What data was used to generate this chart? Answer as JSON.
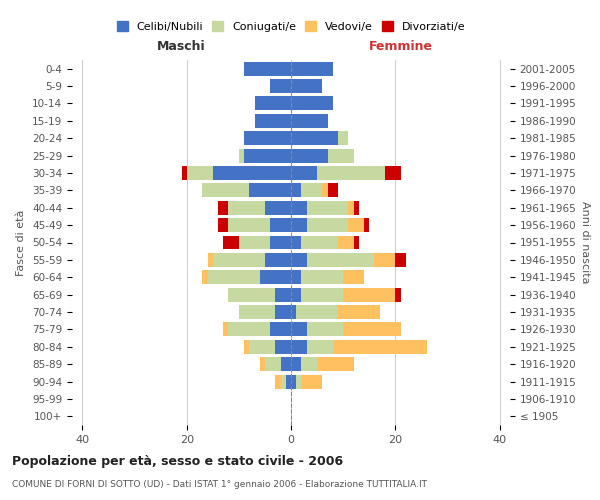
{
  "age_groups": [
    "100+",
    "95-99",
    "90-94",
    "85-89",
    "80-84",
    "75-79",
    "70-74",
    "65-69",
    "60-64",
    "55-59",
    "50-54",
    "45-49",
    "40-44",
    "35-39",
    "30-34",
    "25-29",
    "20-24",
    "15-19",
    "10-14",
    "5-9",
    "0-4"
  ],
  "birth_years": [
    "≤ 1905",
    "1906-1910",
    "1911-1915",
    "1916-1920",
    "1921-1925",
    "1926-1930",
    "1931-1935",
    "1936-1940",
    "1941-1945",
    "1946-1950",
    "1951-1955",
    "1956-1960",
    "1961-1965",
    "1966-1970",
    "1971-1975",
    "1976-1980",
    "1981-1985",
    "1986-1990",
    "1991-1995",
    "1996-2000",
    "2001-2005"
  ],
  "male": {
    "celibi": [
      0,
      0,
      1,
      2,
      3,
      4,
      3,
      3,
      6,
      5,
      4,
      4,
      5,
      8,
      15,
      9,
      9,
      7,
      7,
      4,
      9
    ],
    "coniugati": [
      0,
      0,
      1,
      3,
      5,
      8,
      7,
      9,
      10,
      10,
      6,
      8,
      7,
      9,
      5,
      1,
      0,
      0,
      0,
      0,
      0
    ],
    "vedovi": [
      0,
      0,
      1,
      1,
      1,
      1,
      0,
      0,
      1,
      1,
      0,
      0,
      0,
      0,
      0,
      0,
      0,
      0,
      0,
      0,
      0
    ],
    "divorziati": [
      0,
      0,
      0,
      0,
      0,
      0,
      0,
      0,
      0,
      0,
      3,
      2,
      2,
      0,
      1,
      0,
      0,
      0,
      0,
      0,
      0
    ]
  },
  "female": {
    "nubili": [
      0,
      0,
      1,
      2,
      3,
      3,
      1,
      2,
      2,
      3,
      2,
      3,
      3,
      2,
      5,
      7,
      9,
      7,
      8,
      6,
      8
    ],
    "coniugate": [
      0,
      0,
      1,
      3,
      5,
      7,
      8,
      8,
      8,
      13,
      7,
      8,
      8,
      4,
      13,
      5,
      2,
      0,
      0,
      0,
      0
    ],
    "vedove": [
      0,
      0,
      4,
      7,
      18,
      11,
      8,
      10,
      4,
      4,
      3,
      3,
      1,
      1,
      0,
      0,
      0,
      0,
      0,
      0,
      0
    ],
    "divorziate": [
      0,
      0,
      0,
      0,
      0,
      0,
      0,
      1,
      0,
      2,
      1,
      1,
      1,
      2,
      3,
      0,
      0,
      0,
      0,
      0,
      0
    ]
  },
  "colors": {
    "celibi": "#4472c4",
    "coniugati": "#c5d9a0",
    "vedovi": "#ffc060",
    "divorziati": "#cc0000"
  },
  "xlim": 42,
  "title": "Popolazione per età, sesso e stato civile - 2006",
  "subtitle": "COMUNE DI FORNI DI SOTTO (UD) - Dati ISTAT 1° gennaio 2006 - Elaborazione TUTTITALIA.IT",
  "ylabel_left": "Fasce di età",
  "ylabel_right": "Anni di nascita",
  "xlabel_left": "Maschi",
  "xlabel_right": "Femmine"
}
